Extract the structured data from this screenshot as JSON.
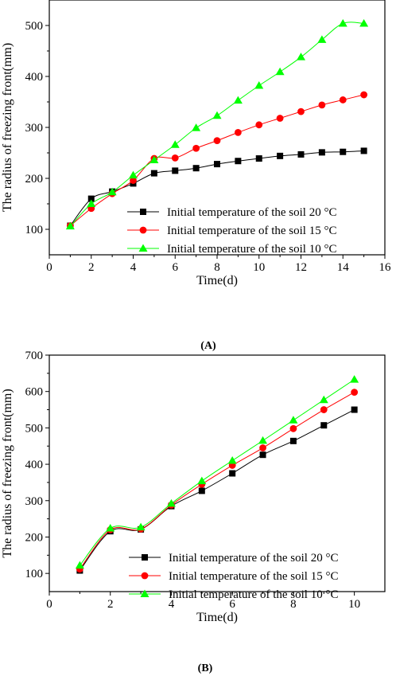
{
  "colors": {
    "s20": "#000000",
    "s15": "#ff0000",
    "s10": "#00ff00",
    "panel_label": "#c00000",
    "axis": "#000000"
  },
  "chart_data": [
    {
      "type": "line",
      "panel_label": "(A)",
      "xlabel": "Time(d)",
      "ylabel": "The radius of freezing front(mm)",
      "xlim": [
        0,
        16
      ],
      "ylim": [
        50,
        550
      ],
      "xticks": [
        0,
        2,
        4,
        6,
        8,
        10,
        12,
        14,
        16
      ],
      "yticks": [
        100,
        200,
        300,
        400,
        500
      ],
      "grid": false,
      "legend_position": "right",
      "series": [
        {
          "name": "Initial temperature of the soil 20 °C",
          "marker": "square",
          "color": "#000000",
          "x": [
            1,
            2,
            3,
            4,
            5,
            6,
            7,
            8,
            9,
            10,
            11,
            12,
            13,
            14,
            15
          ],
          "y": [
            107,
            160,
            174,
            190,
            210,
            215,
            220,
            228,
            234,
            239,
            244,
            247,
            251,
            252,
            254
          ]
        },
        {
          "name": "Initial temperature of the soil 15 °C",
          "marker": "circle",
          "color": "#ff0000",
          "x": [
            1,
            2,
            3,
            4,
            5,
            6,
            7,
            8,
            9,
            10,
            11,
            12,
            13,
            14,
            15
          ],
          "y": [
            107,
            141,
            170,
            196,
            239,
            240,
            259,
            274,
            290,
            305,
            318,
            331,
            344,
            354,
            364
          ]
        },
        {
          "name": "Initial temperature of the soil 10 °C",
          "marker": "triangle",
          "color": "#00ff00",
          "x": [
            1,
            2,
            3,
            4,
            5,
            6,
            7,
            8,
            9,
            10,
            11,
            12,
            13,
            14,
            15
          ],
          "y": [
            106,
            150,
            173,
            206,
            236,
            266,
            299,
            323,
            353,
            382,
            409,
            438,
            472,
            504,
            504
          ]
        }
      ]
    },
    {
      "type": "line",
      "panel_label": "(B)",
      "xlabel": "Time(d)",
      "ylabel": "The radius of freezing front(mm)",
      "xlim": [
        0,
        11
      ],
      "ylim": [
        50,
        700
      ],
      "xticks": [
        0,
        2,
        4,
        6,
        8,
        10
      ],
      "yticks": [
        100,
        200,
        300,
        400,
        500,
        600,
        700
      ],
      "grid": false,
      "legend_position": "bottom-right",
      "series": [
        {
          "name": "Initial temperature of the soil 20 °C",
          "marker": "square",
          "color": "#000000",
          "x": [
            1,
            2,
            3,
            4,
            5,
            6,
            7,
            8,
            9,
            10
          ],
          "y": [
            108,
            216,
            221,
            285,
            327,
            375,
            426,
            464,
            507,
            550
          ]
        },
        {
          "name": "Initial temperature of the soil 15 °C",
          "marker": "circle",
          "color": "#ff0000",
          "x": [
            1,
            2,
            3,
            4,
            5,
            6,
            7,
            8,
            9,
            10
          ],
          "y": [
            112,
            220,
            222,
            288,
            345,
            397,
            445,
            498,
            550,
            598
          ]
        },
        {
          "name": "Initial temperature of the soil 10 °C",
          "marker": "triangle",
          "color": "#00ff00",
          "x": [
            1,
            2,
            3,
            4,
            5,
            6,
            7,
            8,
            9,
            10
          ],
          "y": [
            122,
            224,
            227,
            292,
            354,
            410,
            465,
            521,
            577,
            633
          ]
        }
      ]
    }
  ]
}
